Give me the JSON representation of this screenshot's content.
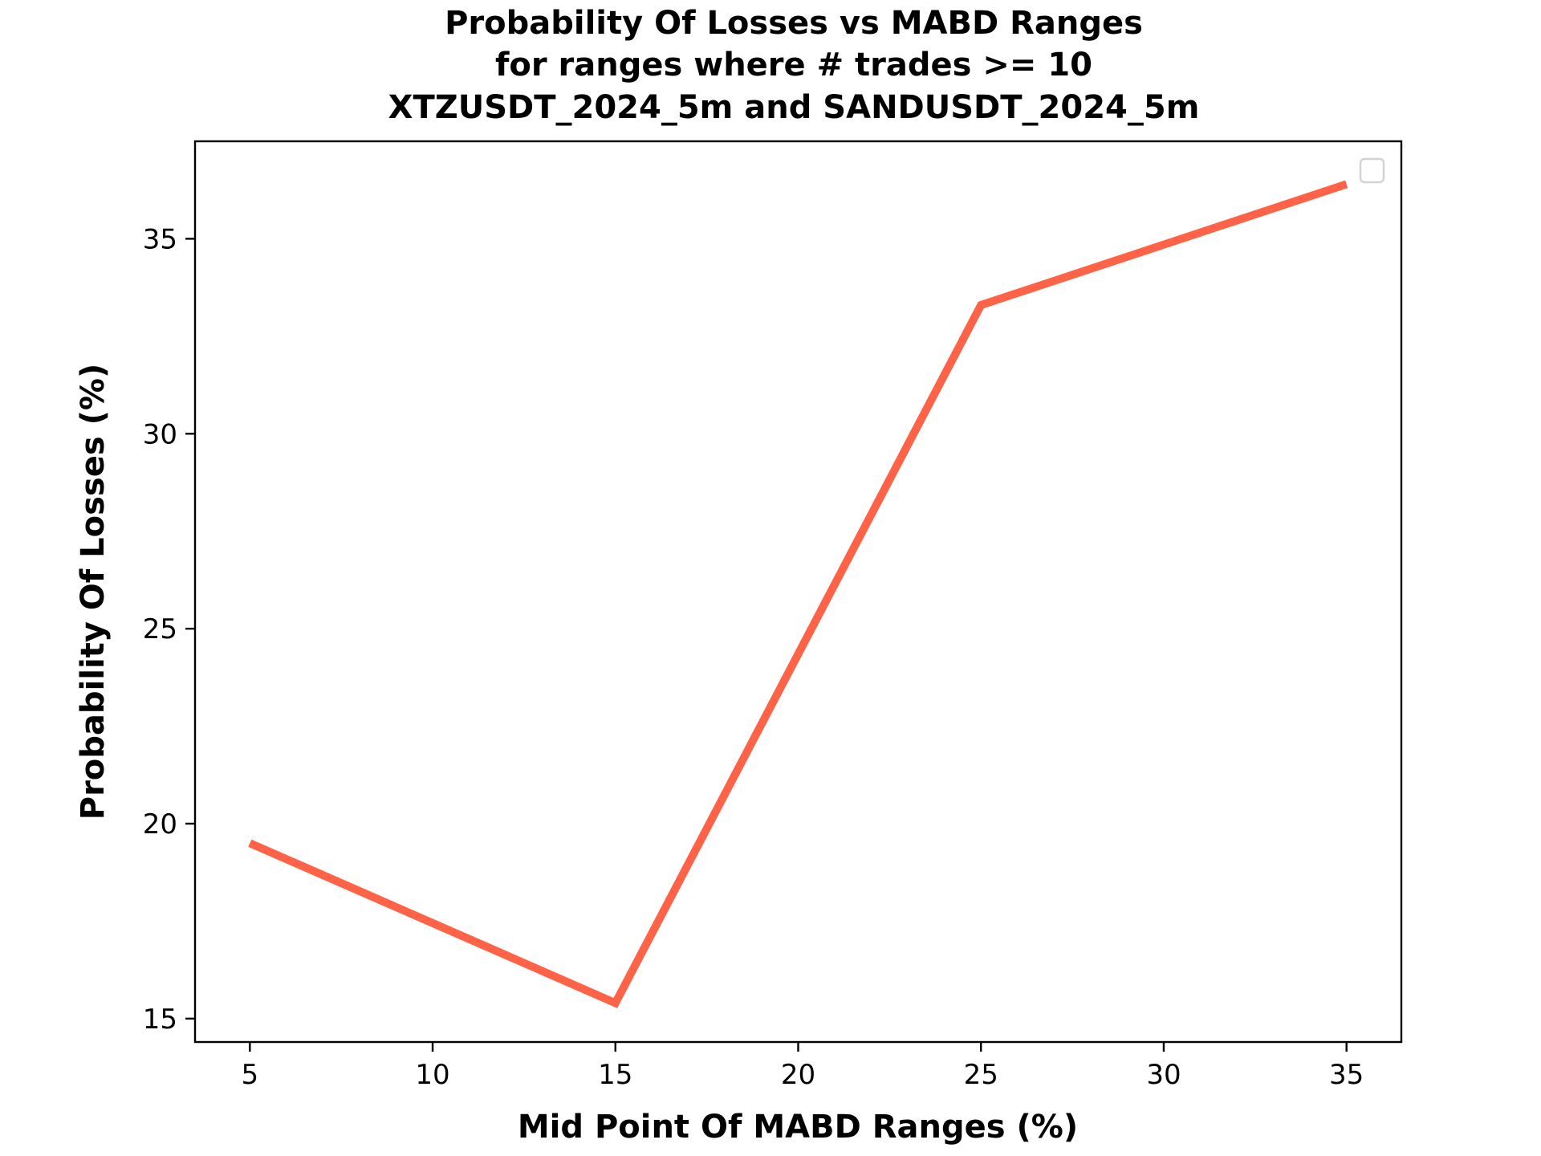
{
  "chart_data": {
    "type": "line",
    "title": [
      "Probability Of Losses vs MABD Ranges",
      "for ranges where # trades >= 10",
      "XTZUSDT_2024_5m and SANDUSDT_2024_5m"
    ],
    "xlabel": "Mid Point Of MABD Ranges (%)",
    "ylabel": "Probability Of Losses (%)",
    "xlim": [
      3.5,
      36.5
    ],
    "ylim": [
      14.4,
      37.5
    ],
    "xticks": [
      5,
      10,
      15,
      20,
      25,
      30,
      35
    ],
    "yticks": [
      15,
      20,
      25,
      30,
      35
    ],
    "grid": false,
    "legend": {
      "placement": "upper right",
      "entries": []
    },
    "series": [
      {
        "color": "#ff6347",
        "x": [
          5,
          15,
          25,
          35
        ],
        "y": [
          19.5,
          15.4,
          33.3,
          36.4
        ]
      }
    ]
  }
}
